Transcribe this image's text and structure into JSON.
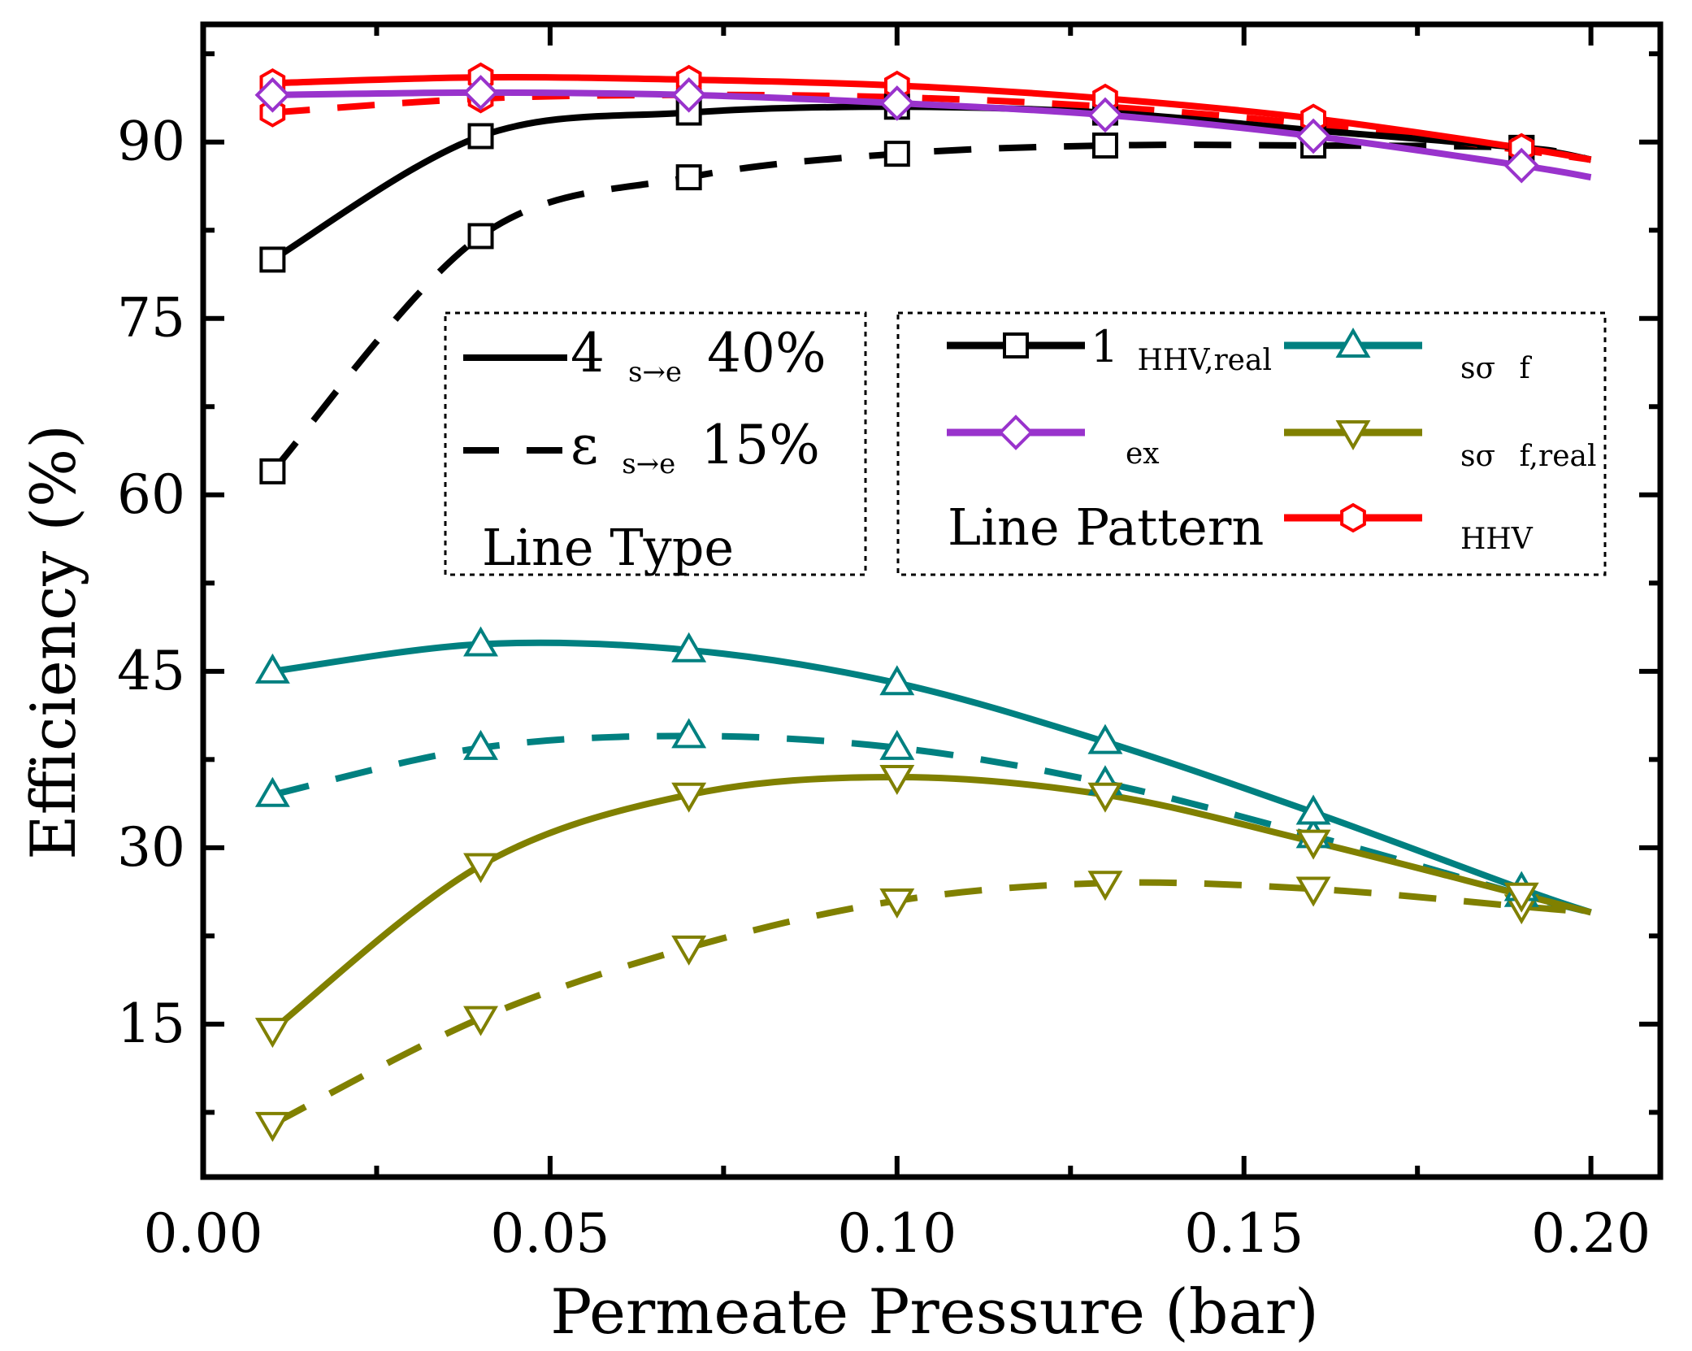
{
  "chart_data": {
    "type": "line",
    "xlabel": "Permeate Pressure (bar)",
    "ylabel": "Efficiency (%)",
    "xlim": [
      0.0,
      0.21
    ],
    "ylim": [
      2,
      100
    ],
    "xticks": [
      0.0,
      0.05,
      0.1,
      0.15,
      0.2
    ],
    "xtick_labels": [
      "0.00",
      "0.05",
      "0.10",
      "0.15",
      "0.20"
    ],
    "yticks": [
      15,
      30,
      45,
      60,
      75,
      90
    ],
    "ytick_labels": [
      "15",
      "30",
      "45",
      "60",
      "75",
      "90"
    ],
    "x": [
      0.01,
      0.04,
      0.07,
      0.1,
      0.13,
      0.16,
      0.19,
      0.2
    ],
    "colors": {
      "black": "#000000",
      "purple": "#9933CC",
      "red": "#FF0000",
      "teal": "#008080",
      "olive": "#808000"
    },
    "series": [
      {
        "name": "η HHV,real (40%)",
        "color": "black",
        "dash": "solid",
        "marker": "square",
        "values": [
          80.0,
          90.5,
          92.5,
          93.0,
          92.5,
          91.0,
          89.5,
          88.5
        ],
        "marker_count": 7
      },
      {
        "name": "η HHV,real (15%)",
        "color": "black",
        "dash": "dashed",
        "marker": "square",
        "values": [
          62.0,
          82.0,
          87.0,
          89.0,
          89.7,
          89.7,
          89.5,
          88.5
        ],
        "marker_count": 7
      },
      {
        "name": "η ex (40%)",
        "color": "purple",
        "dash": "solid",
        "marker": "diamond",
        "values": [
          94.0,
          94.2,
          94.0,
          93.3,
          92.3,
          90.5,
          88.0,
          87.0
        ],
        "marker_count": 7
      },
      {
        "name": "η HHV (40%)",
        "color": "red",
        "dash": "solid",
        "marker": "hexagon",
        "values": [
          95.0,
          95.5,
          95.3,
          94.8,
          93.7,
          92.0,
          89.5,
          88.5
        ],
        "marker_count": 7
      },
      {
        "name": "η HHV (15%)",
        "color": "red",
        "dash": "dashed",
        "marker": "hexagon",
        "values": [
          92.5,
          93.7,
          94.0,
          93.8,
          93.0,
          91.5,
          89.3,
          88.5
        ],
        "marker_count": 7
      },
      {
        "name": "η sof (40%)",
        "color": "teal",
        "dash": "solid",
        "marker": "triangle-up",
        "values": [
          45.0,
          47.3,
          46.8,
          44.0,
          39.0,
          33.0,
          26.5,
          24.5
        ],
        "marker_count": 7
      },
      {
        "name": "η sof (15%)",
        "color": "teal",
        "dash": "dashed",
        "marker": "triangle-up",
        "values": [
          34.5,
          38.5,
          39.5,
          38.5,
          35.5,
          31.0,
          26.0,
          24.5
        ],
        "marker_count": 7
      },
      {
        "name": "η sof,real (40%)",
        "color": "olive",
        "dash": "solid",
        "marker": "triangle-down",
        "values": [
          14.5,
          28.5,
          34.5,
          36.0,
          34.5,
          30.5,
          26.0,
          24.5
        ],
        "marker_count": 7
      },
      {
        "name": "η sof,real (15%)",
        "color": "olive",
        "dash": "dashed",
        "marker": "triangle-down",
        "values": [
          6.5,
          15.5,
          21.5,
          25.5,
          27.0,
          26.5,
          25.0,
          24.5
        ],
        "marker_count": 7
      }
    ],
    "legend_line_type": {
      "title": "Line Type",
      "entries": [
        {
          "sym": "4",
          "sub": "s→e",
          "val": "40%",
          "dash": "solid"
        },
        {
          "sym": "ε",
          "sub": "s→e",
          "val": "15%",
          "dash": "dashed"
        }
      ],
      "placement": "center-left"
    },
    "legend_line_pattern": {
      "title": "Line Pattern",
      "entries": [
        {
          "sym": "1",
          "sub": "HHV,real",
          "color": "black",
          "marker": "square"
        },
        {
          "sym": "",
          "sub": "ex",
          "color": "purple",
          "marker": "diamond"
        },
        {
          "sym": "",
          "sub": "HHV",
          "color": "red",
          "marker": "hexagon"
        },
        {
          "sym": "sσ",
          "sub": "f",
          "color": "teal",
          "marker": "triangle-up"
        },
        {
          "sym": "sσ",
          "sub": "f,real",
          "color": "olive",
          "marker": "triangle-down"
        }
      ],
      "placement": "center-right"
    }
  }
}
